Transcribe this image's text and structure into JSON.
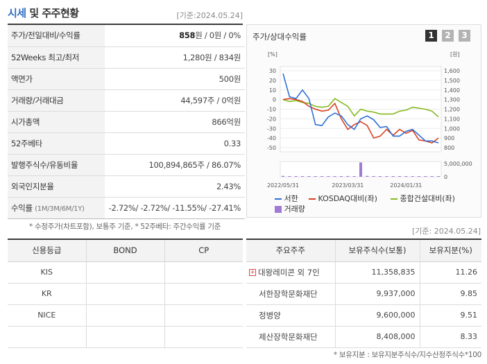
{
  "header": {
    "title_accent": "시세",
    "title_rest": " 및 주주현황",
    "ref_date": "[기준:2024.05.24]"
  },
  "price_table": [
    {
      "label": "주가/전일대비/수익률",
      "value_bold": "858",
      "value_rest": "원 / 0원 / 0%"
    },
    {
      "label": "52Weeks 최고/최저",
      "value": "1,280원 / 834원"
    },
    {
      "label": "액면가",
      "value": "500원"
    },
    {
      "label": "거래량/거래대금",
      "value": "44,597주 / 0억원"
    },
    {
      "label": "시가총액",
      "value": "866억원"
    },
    {
      "label": "52주베타",
      "value": "0.33"
    },
    {
      "label": "발행주식수/유동비율",
      "value": "100,894,865주 / 86.07%"
    },
    {
      "label": "외국인지분율",
      "value": "2.43%"
    }
  ],
  "returns": {
    "label": "수익률",
    "periods": "(1M/3M/6M/1Y)",
    "value": "-2.72%/ -2.72%/ -11.55%/ -27.41%"
  },
  "price_note": "* 수정주가(차트포함), 보통주 기준, * 52주베타: 주간수익률 기준",
  "chart": {
    "title": "주가/상대수익률",
    "pages": [
      "1",
      "2",
      "3"
    ],
    "legend": [
      {
        "name": "서한",
        "color": "#2f6fd6"
      },
      {
        "name": "KOSDAQ대비(좌)",
        "color": "#d9401e"
      },
      {
        "name": "종합건설대비(좌)",
        "color": "#86b920"
      },
      {
        "name": "거래량",
        "color": "#a17ad8"
      }
    ]
  },
  "chart_data": {
    "type": "line",
    "left_axis_unit": "[%]",
    "right_axis_unit": "[원]",
    "left_ticks": [
      "30",
      "20",
      "10",
      "0",
      "-10",
      "-20",
      "-30",
      "-40",
      "-50"
    ],
    "right_ticks": [
      "1,600",
      "1,500",
      "1,400",
      "1,300",
      "1,200",
      "1,100",
      "1,000",
      "900",
      "800"
    ],
    "volume_ticks": [
      "5,000,000",
      "0"
    ],
    "x_ticks": [
      "2022/05/31",
      "2023/03/31",
      "2024/01/31"
    ],
    "ylim_left": [
      -50,
      30
    ],
    "ylim_right": [
      800,
      1600
    ],
    "series": [
      {
        "name": "서한",
        "color": "#2f6fd6",
        "values": [
          27,
          3,
          1,
          10,
          1,
          -26,
          -27,
          -18,
          -14,
          -17,
          -26,
          -31,
          -20,
          -17,
          -21,
          -29,
          -28,
          -38,
          -38,
          -33,
          -31,
          -37,
          -43,
          -43,
          -45
        ]
      },
      {
        "name": "KOSDAQ대비(좌)",
        "color": "#d9401e",
        "values": [
          0,
          1,
          0,
          -2,
          -7,
          -10,
          -12,
          -11,
          -4,
          -20,
          -31,
          -26,
          -23,
          -27,
          -40,
          -38,
          -31,
          -37,
          -31,
          -35,
          -32,
          -42,
          -43,
          -45,
          -40
        ]
      },
      {
        "name": "종합건설대비(좌)",
        "color": "#86b920",
        "values": [
          0,
          -2,
          -1,
          -3,
          -4,
          -7,
          -8,
          -7,
          1,
          -3,
          -7,
          -17,
          -10,
          -12,
          -13,
          -15,
          -15,
          -15,
          -12,
          -11,
          -8,
          -9,
          -10,
          -12,
          -18
        ]
      },
      {
        "name": "거래량",
        "color": "#a17ad8",
        "values": [
          300000,
          200000,
          150000,
          100000,
          150000,
          200000,
          150000,
          100000,
          150000,
          200000,
          250000,
          150000,
          4700000,
          300000,
          150000,
          100000,
          100000,
          100000,
          150000,
          100000,
          150000,
          200000,
          150000,
          100000,
          150000
        ]
      }
    ]
  },
  "right_ref_date": "[기준: 2024.05.24]",
  "credit_table": {
    "headers": [
      "신용등급",
      "BOND",
      "CP"
    ],
    "rows": [
      [
        "KIS",
        "",
        ""
      ],
      [
        "KR",
        "",
        ""
      ],
      [
        "NICE",
        "",
        ""
      ],
      [
        "",
        "",
        ""
      ]
    ]
  },
  "holders_table": {
    "headers": [
      "주요주주",
      "보유주식수(보통)",
      "보유지분(%)"
    ],
    "rows": [
      {
        "name": "대왕레미콘 외 7인",
        "shares": "11,358,835",
        "pct": "11.26",
        "expand": "+"
      },
      {
        "name": "서한장학문화재단",
        "shares": "9,937,000",
        "pct": "9.85"
      },
      {
        "name": "정병양",
        "shares": "9,600,000",
        "pct": "9.51"
      },
      {
        "name": "제산장학문화재단",
        "shares": "8,408,000",
        "pct": "8.33"
      }
    ]
  },
  "holders_note": "* 보유지분 : 보유지분주식수/지수산정주식수*100"
}
